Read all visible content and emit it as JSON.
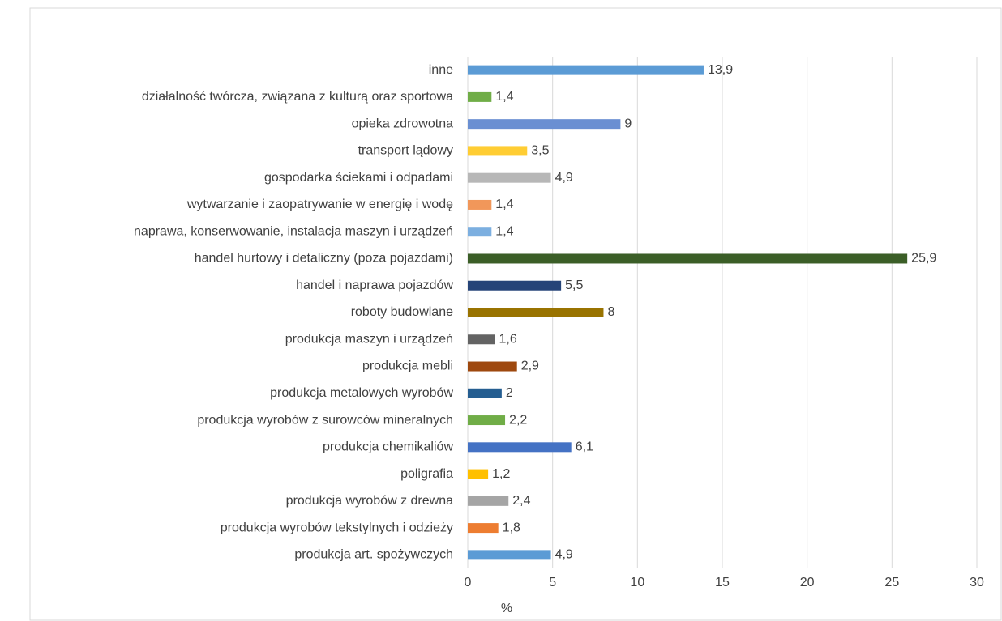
{
  "chart_data": {
    "type": "barh",
    "categories": [
      "inne",
      "działalność twórcza, związana z kulturą oraz sportowa",
      "opieka zdrowotna",
      "transport lądowy",
      "gospodarka ściekami i odpadami",
      "wytwarzanie i zaopatrywanie w energię i wodę",
      "naprawa, konserwowanie, instalacja maszyn i urządzeń",
      "handel hurtowy i detaliczny (poza pojazdami)",
      "handel i naprawa pojazdów",
      "roboty budowlane",
      "produkcja maszyn i urządzeń",
      "produkcja mebli",
      "produkcja metalowych wyrobów",
      "produkcja wyrobów z surowców mineralnych",
      "produkcja chemikaliów",
      "poligrafia",
      "produkcja wyrobów z drewna",
      "produkcja wyrobów tekstylnych i odzieży",
      "produkcja art. spożywczych"
    ],
    "values": [
      13.9,
      1.4,
      9,
      3.5,
      4.9,
      1.4,
      1.4,
      25.9,
      5.5,
      8,
      1.6,
      2.9,
      2,
      2.2,
      6.1,
      1.2,
      2.4,
      1.8,
      4.9
    ],
    "value_labels": [
      "13,9",
      "1,4",
      "9",
      "3,5",
      "4,9",
      "1,4",
      "1,4",
      "25,9",
      "5,5",
      "8",
      "1,6",
      "2,9",
      "2",
      "2,2",
      "6,1",
      "1,2",
      "2,4",
      "1,8",
      "4,9"
    ],
    "colors": [
      "#5b9bd5",
      "#70ad47",
      "#6a8fd2",
      "#ffcd33",
      "#b7b7b7",
      "#f1975a",
      "#7cafe0",
      "#3b5e27",
      "#264478",
      "#997300",
      "#636363",
      "#9e480e",
      "#255e91",
      "#70ad47",
      "#4472c4",
      "#ffc000",
      "#a5a5a5",
      "#ed7d31",
      "#5b9bd5"
    ],
    "xlabel": "%",
    "xlim": [
      0,
      30
    ],
    "xticks": [
      0,
      5,
      10,
      15,
      20,
      25,
      30
    ],
    "grid": true
  }
}
